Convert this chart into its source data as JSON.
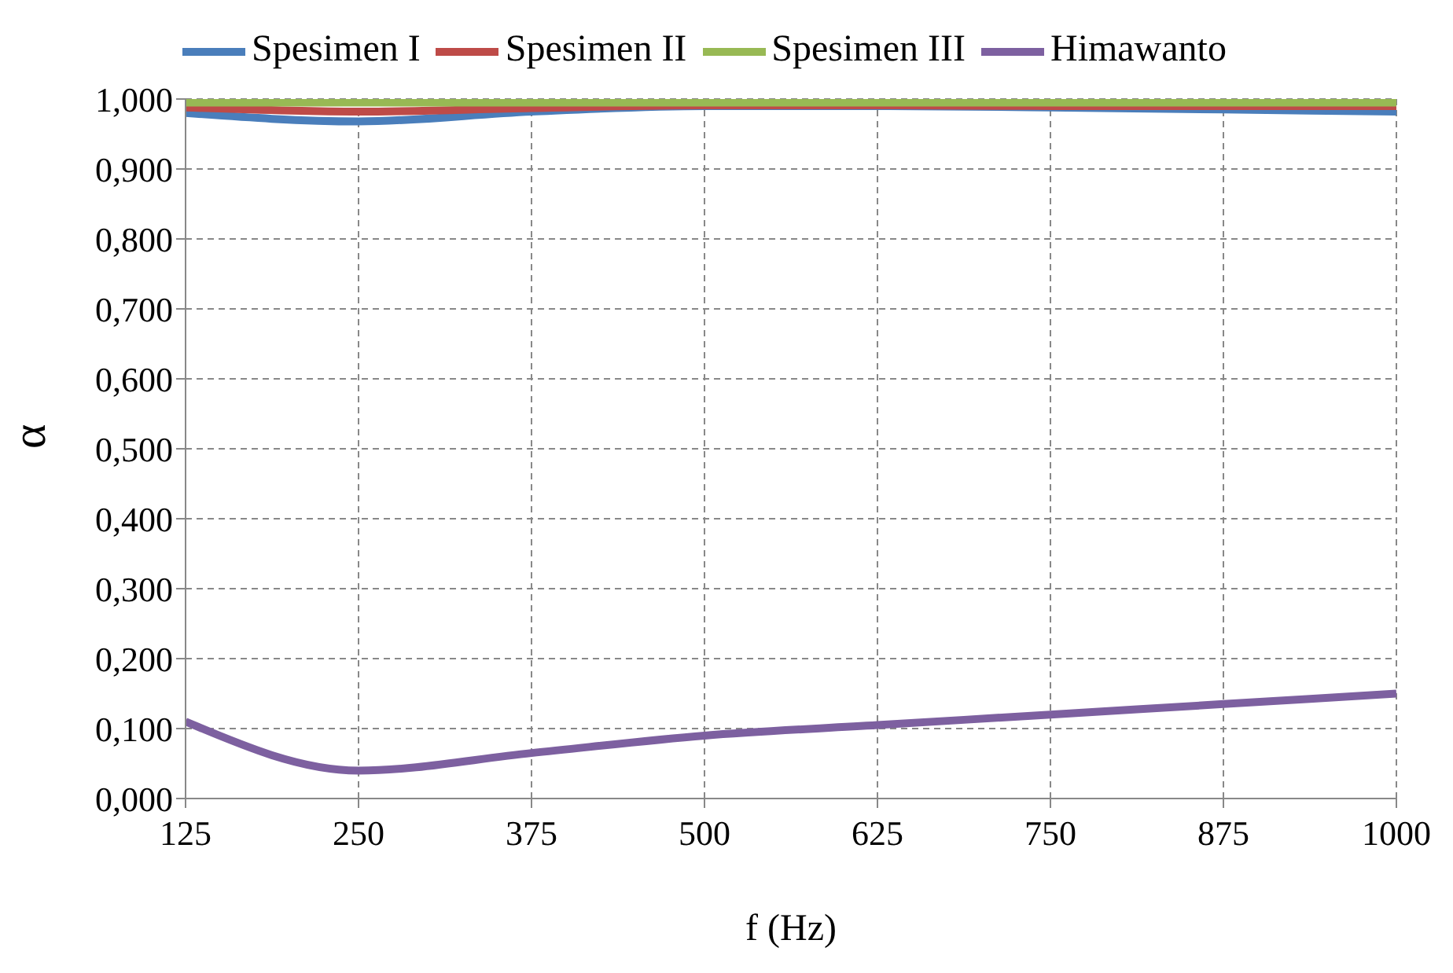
{
  "chart_data": {
    "type": "line",
    "xlabel": "f (Hz)",
    "ylabel": "α",
    "x": [
      125,
      250,
      375,
      500,
      625,
      750,
      875,
      1000
    ],
    "series": [
      {
        "name": "Spesimen I",
        "color": "#4a7ebb",
        "values": [
          0.98,
          0.968,
          0.982,
          0.99,
          0.99,
          0.988,
          0.985,
          0.982
        ]
      },
      {
        "name": "Spesimen II",
        "color": "#be4b48",
        "values": [
          0.988,
          0.982,
          0.987,
          0.991,
          0.991,
          0.99,
          0.99,
          0.99
        ]
      },
      {
        "name": "Spesimen III",
        "color": "#98b954",
        "values": [
          0.995,
          0.995,
          0.995,
          0.995,
          0.995,
          0.995,
          0.995,
          0.995
        ]
      },
      {
        "name": "Himawanto",
        "color": "#7d60a0",
        "values": [
          0.11,
          0.04,
          0.065,
          0.09,
          0.105,
          0.12,
          0.135,
          0.15
        ]
      }
    ],
    "xlim": [
      125,
      1000
    ],
    "xticks": [
      125,
      250,
      375,
      500,
      625,
      750,
      875,
      1000
    ],
    "ylim": [
      0,
      1
    ],
    "yticks": [
      {
        "value": 0,
        "label": "0,000"
      },
      {
        "value": 0.1,
        "label": "0,100"
      },
      {
        "value": 0.2,
        "label": "0,200"
      },
      {
        "value": 0.3,
        "label": "0,300"
      },
      {
        "value": 0.4,
        "label": "0,400"
      },
      {
        "value": 0.5,
        "label": "0,500"
      },
      {
        "value": 0.6,
        "label": "0,600"
      },
      {
        "value": 0.7,
        "label": "0,700"
      },
      {
        "value": 0.8,
        "label": "0,800"
      },
      {
        "value": 0.9,
        "label": "0,900"
      },
      {
        "value": 1,
        "label": "1,000"
      }
    ],
    "grid": true,
    "legend": "top",
    "marker": "none",
    "line_style": "solid"
  }
}
